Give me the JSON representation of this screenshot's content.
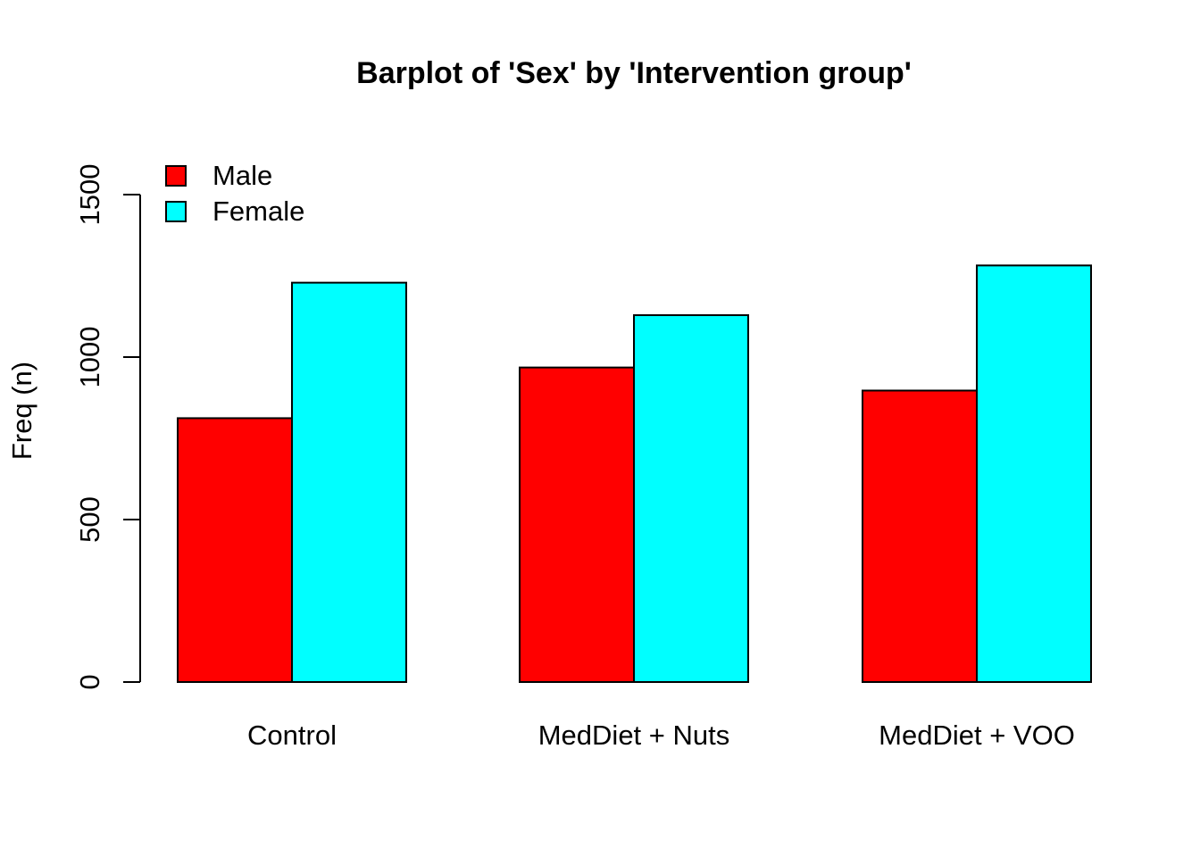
{
  "chart_data": {
    "type": "bar",
    "title": "Barplot of 'Sex' by 'Intervention group'",
    "xlabel": "",
    "ylabel": "Freq (n)",
    "categories": [
      "Control",
      "MedDiet + Nuts",
      "MedDiet + VOO"
    ],
    "series": [
      {
        "name": "Male",
        "color": "#ff0000",
        "values": [
          812,
          968,
          897
        ]
      },
      {
        "name": "Female",
        "color": "#00ffff",
        "values": [
          1229,
          1129,
          1282
        ]
      }
    ],
    "yticks": [
      0,
      500,
      1000,
      1500
    ],
    "ylim": [
      0,
      1500
    ],
    "grid": false,
    "legend": "top-left"
  }
}
